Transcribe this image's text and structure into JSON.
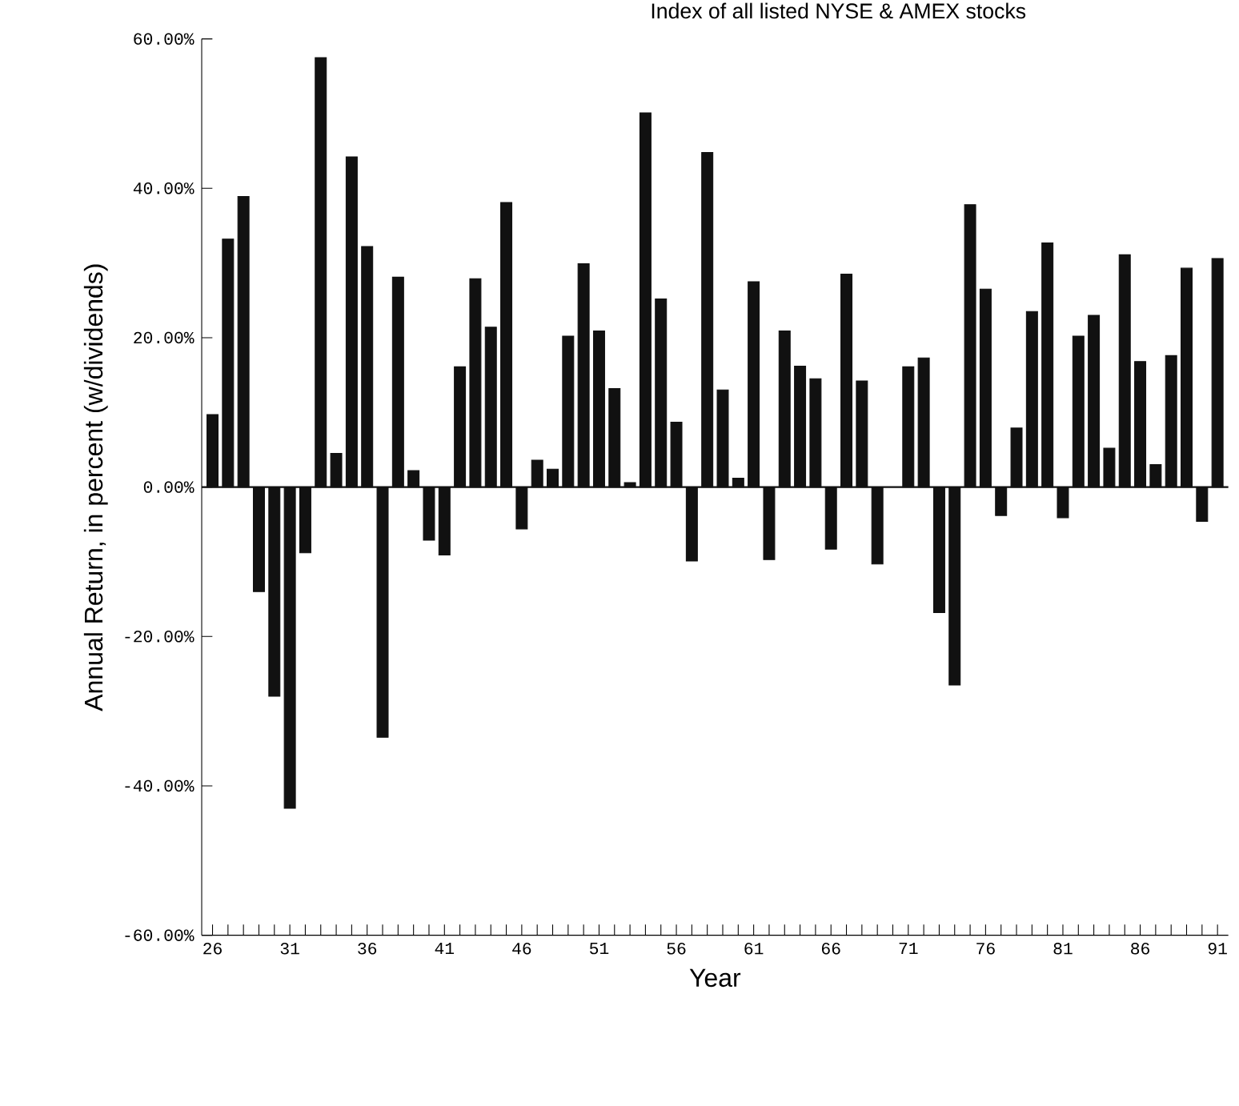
{
  "chart_data": {
    "type": "bar",
    "title": "Index of all listed NYSE & AMEX stocks",
    "xlabel": "Year",
    "ylabel": "Annual Return, in percent (w/dividends)",
    "categories": [
      "26",
      null,
      null,
      null,
      null,
      "31",
      null,
      null,
      null,
      null,
      "36",
      null,
      null,
      null,
      null,
      "41",
      null,
      null,
      null,
      null,
      "46",
      null,
      null,
      null,
      null,
      "51",
      null,
      null,
      null,
      null,
      "56",
      null,
      null,
      null,
      null,
      "61",
      null,
      null,
      null,
      null,
      "66",
      null,
      null,
      null,
      null,
      "71",
      null,
      null,
      null,
      null,
      "76",
      null,
      null,
      null,
      null,
      "81",
      null,
      null,
      null,
      null,
      "86",
      null,
      null,
      null,
      null,
      "91"
    ],
    "values": [
      9.7,
      33.2,
      38.9,
      -14.0,
      -28.0,
      -43.0,
      -8.8,
      57.5,
      4.5,
      44.2,
      32.2,
      -33.5,
      28.1,
      2.2,
      -7.1,
      -9.1,
      16.1,
      27.9,
      21.4,
      38.1,
      -5.6,
      3.6,
      2.4,
      20.2,
      29.9,
      20.9,
      13.2,
      0.6,
      50.1,
      25.2,
      8.7,
      -9.9,
      44.8,
      13.0,
      1.2,
      27.5,
      -9.7,
      20.9,
      16.2,
      14.5,
      -8.3,
      28.5,
      14.2,
      -10.3,
      null,
      16.1,
      17.3,
      -16.8,
      -26.5,
      37.8,
      26.5,
      -3.8,
      7.9,
      23.5,
      32.7,
      -4.1,
      20.2,
      23.0,
      5.2,
      31.1,
      16.8,
      3.0,
      17.6,
      29.3,
      -4.6,
      30.6
    ],
    "color": "#111111",
    "ylim": [
      -60,
      60
    ],
    "yticks": [
      {
        "value": -60,
        "label": "-60.00%"
      },
      {
        "value": -40,
        "label": "-40.00%"
      },
      {
        "value": -20,
        "label": "-20.00%"
      },
      {
        "value": 0,
        "label": "0.00%"
      },
      {
        "value": 20,
        "label": "20.00%"
      },
      {
        "value": 40,
        "label": "40.00%"
      },
      {
        "value": 60,
        "label": "60.00%"
      }
    ],
    "ref_lines": [
      {
        "axis": "y",
        "value": 0,
        "color": "#111111"
      }
    ]
  }
}
